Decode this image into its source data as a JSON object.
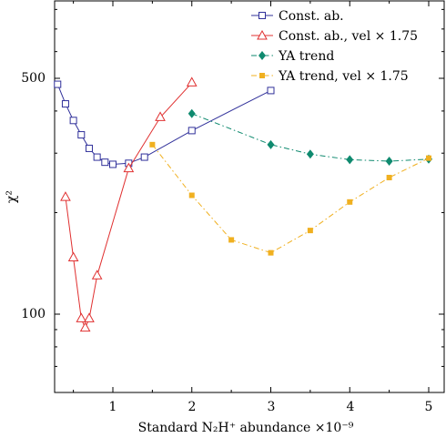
{
  "chart_data": {
    "type": "line",
    "title": "",
    "xlabel": "Standard N₂H⁺ abundance ×10⁻⁹",
    "ylabel": "χ²",
    "xlim": [
      0.25,
      5.2
    ],
    "ylim": [
      70,
      800
    ],
    "yscale": "log",
    "xticks": [
      1,
      2,
      3,
      4,
      5
    ],
    "xtick_labels": [
      "1",
      "2",
      "3",
      "4",
      "5"
    ],
    "yticks": [
      100,
      500
    ],
    "ytick_labels": [
      "100",
      "500"
    ],
    "grid": false,
    "legend_position": "top-right",
    "series": [
      {
        "name": "Const. ab.",
        "color": "#30309a",
        "marker": "open-square",
        "line": "solid",
        "x": [
          0.3,
          0.4,
          0.5,
          0.6,
          0.7,
          0.8,
          0.9,
          1.0,
          1.2,
          1.4,
          2.0,
          3.0
        ],
        "y": [
          480,
          420,
          375,
          340,
          310,
          292,
          282,
          278,
          280,
          292,
          350,
          460
        ]
      },
      {
        "name": "Const. ab., vel × 1.75",
        "color": "#e03030",
        "marker": "open-triangle",
        "line": "solid",
        "x": [
          0.4,
          0.5,
          0.6,
          0.65,
          0.7,
          0.8,
          1.2,
          1.6,
          2.0
        ],
        "y": [
          222,
          147,
          97,
          91,
          97,
          130,
          270,
          383,
          485
        ]
      },
      {
        "name": "YA trend",
        "color": "#0f8a6f",
        "marker": "filled-diamond",
        "line": "dashdot",
        "x": [
          2.0,
          3.0,
          3.5,
          4.0,
          4.5,
          5.0
        ],
        "y": [
          393,
          318,
          298,
          287,
          284,
          288
        ]
      },
      {
        "name": "YA trend, vel × 1.75",
        "color": "#f0b020",
        "marker": "filled-square",
        "line": "dashdot",
        "x": [
          1.5,
          2.0,
          2.5,
          3.0,
          3.5,
          4.0,
          4.5,
          5.0
        ],
        "y": [
          318,
          225,
          166,
          152,
          177,
          215,
          254,
          290
        ]
      }
    ]
  }
}
